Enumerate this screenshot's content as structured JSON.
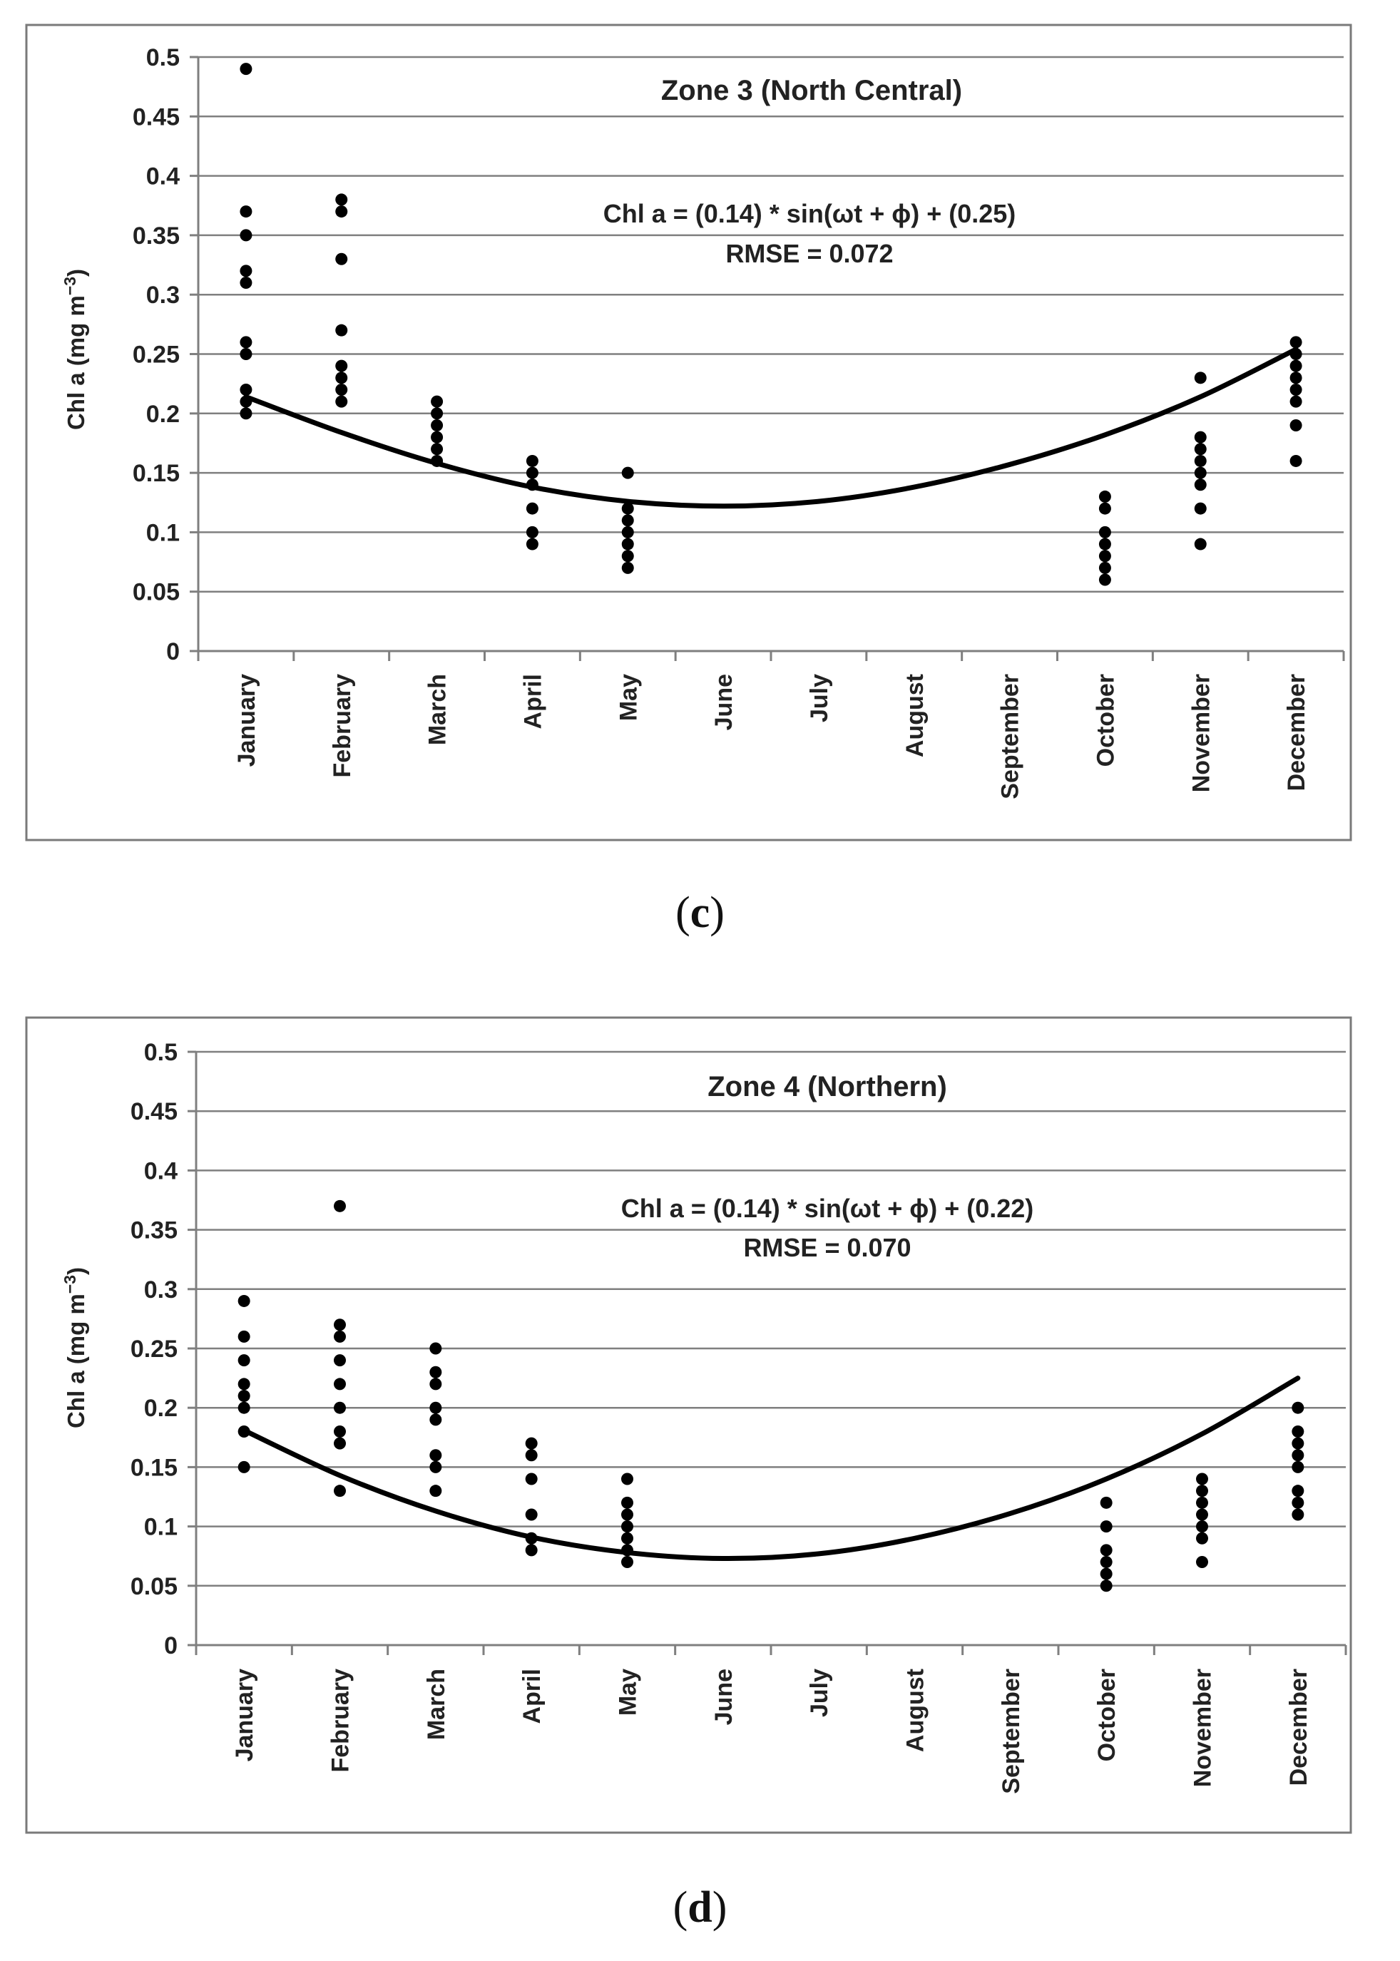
{
  "chart_data": [
    {
      "type": "scatter",
      "panel_label": "c",
      "title": "Zone 3 (North Central)",
      "ylabel": "Chl a (mg m",
      "ylabel_sup": "−3",
      "ylabel_close": ")",
      "xlabel": "",
      "ylim": [
        0,
        0.5
      ],
      "yticks": [
        "0",
        "0.05",
        "0.1",
        "0.15",
        "0.2",
        "0.25",
        "0.3",
        "0.35",
        "0.4",
        "0.45",
        "0.5"
      ],
      "categories": [
        "January",
        "February",
        "March",
        "April",
        "May",
        "June",
        "July",
        "August",
        "September",
        "October",
        "November",
        "December"
      ],
      "equation": "Chl a = (0.14) * sin(ωt + ϕ) + (0.25)",
      "rmse": "RMSE = 0.072",
      "series": [
        {
          "name": "observations",
          "points": {
            "January": [
              0.49,
              0.37,
              0.35,
              0.32,
              0.31,
              0.26,
              0.25,
              0.22,
              0.21,
              0.2
            ],
            "February": [
              0.38,
              0.37,
              0.33,
              0.27,
              0.24,
              0.23,
              0.22,
              0.21
            ],
            "March": [
              0.21,
              0.2,
              0.19,
              0.18,
              0.17,
              0.16
            ],
            "April": [
              0.16,
              0.15,
              0.14,
              0.12,
              0.1,
              0.09
            ],
            "May": [
              0.15,
              0.12,
              0.11,
              0.1,
              0.09,
              0.08,
              0.07
            ],
            "October": [
              0.13,
              0.12,
              0.1,
              0.09,
              0.08,
              0.07,
              0.06
            ],
            "November": [
              0.23,
              0.18,
              0.17,
              0.16,
              0.15,
              0.14,
              0.12,
              0.09
            ],
            "December": [
              0.26,
              0.25,
              0.24,
              0.23,
              0.22,
              0.21,
              0.19,
              0.16
            ]
          }
        },
        {
          "name": "sinusoidal fit",
          "values": [
            0.214,
            0.184,
            0.158,
            0.138,
            0.126,
            0.122,
            0.126,
            0.138,
            0.157,
            0.182,
            0.214,
            0.254
          ]
        }
      ]
    },
    {
      "type": "scatter",
      "panel_label": "d",
      "title": "Zone 4 (Northern)",
      "ylabel": "Chl a (mg m",
      "ylabel_sup": "−3",
      "ylabel_close": ")",
      "xlabel": "",
      "ylim": [
        0,
        0.5
      ],
      "yticks": [
        "0",
        "0.05",
        "0.1",
        "0.15",
        "0.2",
        "0.25",
        "0.3",
        "0.35",
        "0.4",
        "0.45",
        "0.5"
      ],
      "categories": [
        "January",
        "February",
        "March",
        "April",
        "May",
        "June",
        "July",
        "August",
        "September",
        "October",
        "November",
        "December"
      ],
      "equation": "Chl a = (0.14) * sin(ωt + ϕ) + (0.22)",
      "rmse": "RMSE = 0.070",
      "series": [
        {
          "name": "observations",
          "points": {
            "January": [
              0.29,
              0.26,
              0.24,
              0.22,
              0.21,
              0.2,
              0.18,
              0.15
            ],
            "February": [
              0.37,
              0.27,
              0.26,
              0.24,
              0.22,
              0.2,
              0.18,
              0.17,
              0.13
            ],
            "March": [
              0.25,
              0.23,
              0.22,
              0.2,
              0.19,
              0.16,
              0.15,
              0.13
            ],
            "April": [
              0.17,
              0.16,
              0.14,
              0.11,
              0.09,
              0.08
            ],
            "May": [
              0.14,
              0.12,
              0.11,
              0.1,
              0.09,
              0.08,
              0.07
            ],
            "October": [
              0.12,
              0.1,
              0.08,
              0.07,
              0.06,
              0.05
            ],
            "November": [
              0.14,
              0.13,
              0.12,
              0.11,
              0.1,
              0.09,
              0.07
            ],
            "December": [
              0.2,
              0.18,
              0.17,
              0.16,
              0.15,
              0.13,
              0.12,
              0.11
            ]
          }
        },
        {
          "name": "sinusoidal fit",
          "values": [
            0.181,
            0.143,
            0.113,
            0.091,
            0.078,
            0.073,
            0.077,
            0.09,
            0.111,
            0.14,
            0.178,
            0.225
          ]
        }
      ]
    }
  ]
}
